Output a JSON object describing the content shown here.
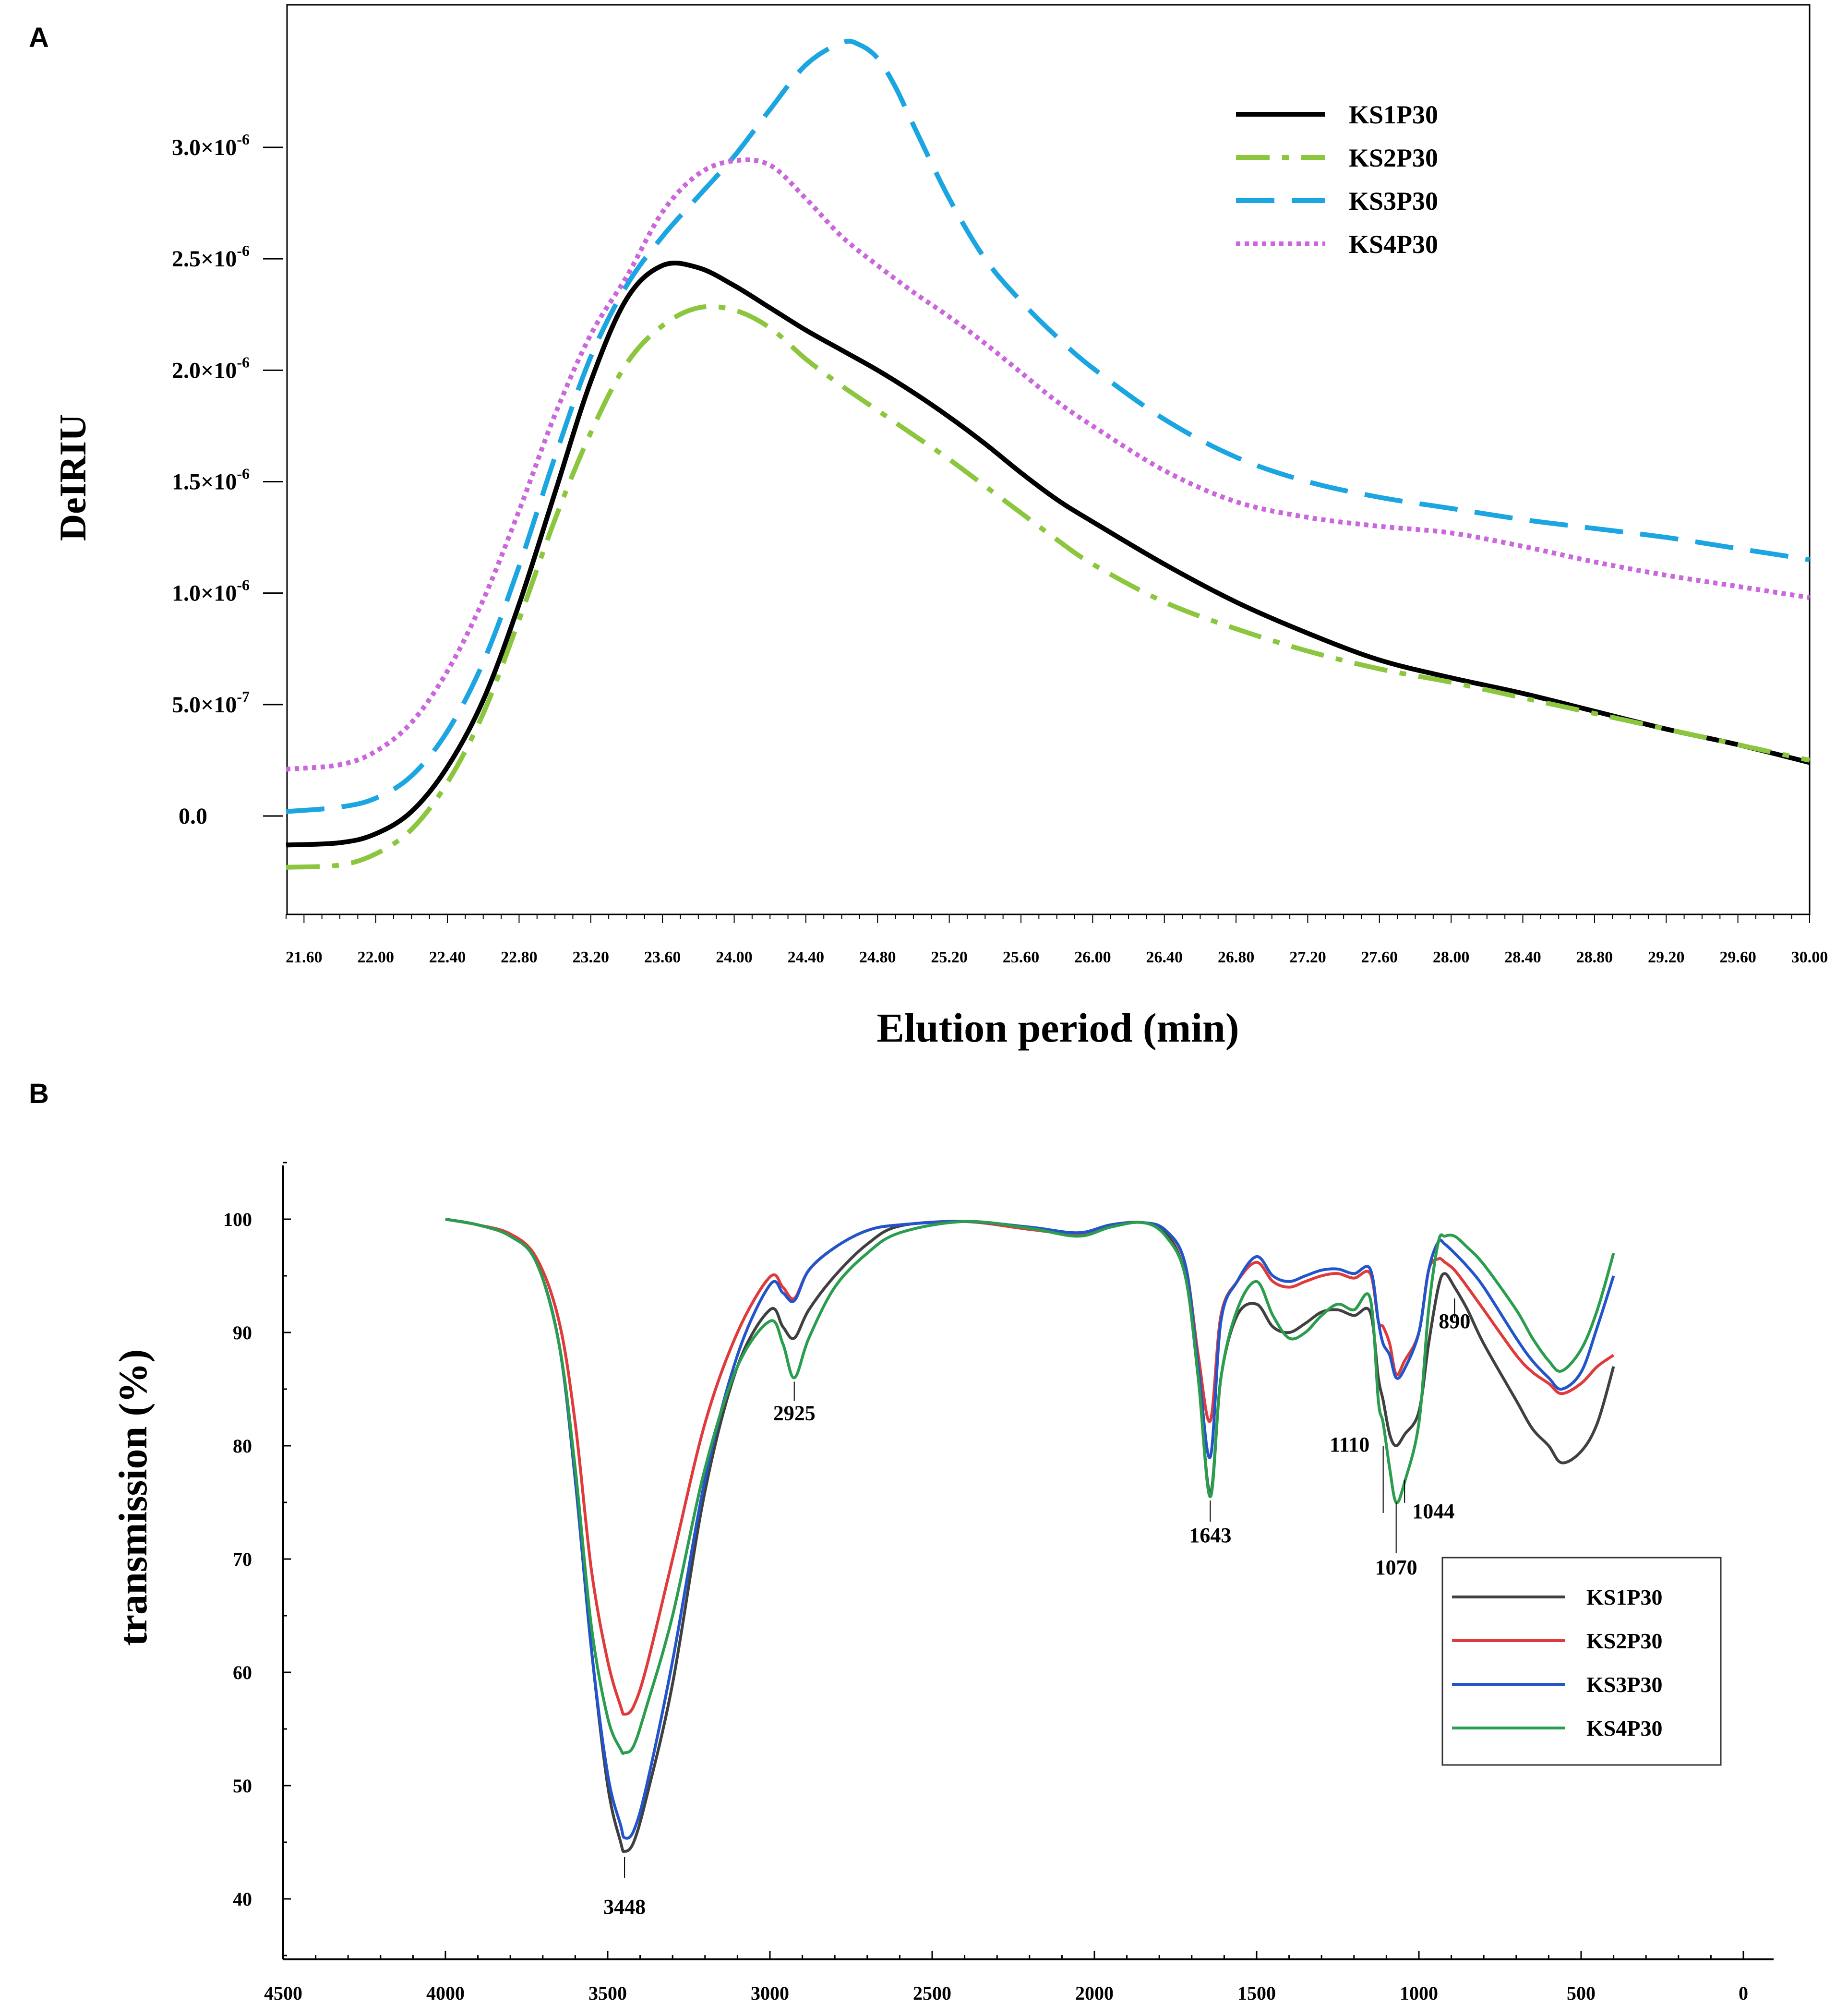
{
  "chart_data": [
    {
      "panel": "A",
      "type": "line",
      "title": "",
      "xlabel": "Elution period (min)",
      "ylabel": "DeIRIU",
      "xlim": [
        21.5,
        30.0
      ],
      "ylim": [
        -4e-07,
        3.5e-06
      ],
      "x_tick_labels": [
        "21.60",
        "22.00",
        "22.40",
        "22.80",
        "23.20",
        "23.60",
        "24.00",
        "24.40",
        "24.80",
        "25.20",
        "25.60",
        "26.00",
        "26.40",
        "26.80",
        "27.20",
        "27.60",
        "28.00",
        "28.40",
        "28.80",
        "29.20",
        "29.60",
        "30.00"
      ],
      "y_ticks": [
        {
          "value": 0,
          "label": "0.0"
        },
        {
          "value": 5e-07,
          "label": "5.0×10",
          "exp": "-7"
        },
        {
          "value": 1e-06,
          "label": "1.0×10",
          "exp": "-6"
        },
        {
          "value": 1.5e-06,
          "label": "1.5×10",
          "exp": "-6"
        },
        {
          "value": 2e-06,
          "label": "2.0×10",
          "exp": "-6"
        },
        {
          "value": 2.5e-06,
          "label": "2.5×10",
          "exp": "-6"
        },
        {
          "value": 3e-06,
          "label": "3.0×10",
          "exp": "-6"
        }
      ],
      "legend_position": "top-right",
      "series": [
        {
          "name": "KS1P30",
          "color": "#000000",
          "dash": "solid",
          "x": [
            21.5,
            21.8,
            22.0,
            22.2,
            22.4,
            22.6,
            22.8,
            23.0,
            23.2,
            23.4,
            23.6,
            23.8,
            24.0,
            24.2,
            24.4,
            24.6,
            24.8,
            25.0,
            25.2,
            25.4,
            25.6,
            25.8,
            26.0,
            26.4,
            26.8,
            27.2,
            27.6,
            28.0,
            28.4,
            28.8,
            29.2,
            29.6,
            30.0
          ],
          "y": [
            -1.3e-07,
            -1.2e-07,
            -8e-08,
            2e-08,
            2.2e-07,
            5.2e-07,
            9.5e-07,
            1.45e-06,
            1.95e-06,
            2.32e-06,
            2.47e-06,
            2.46e-06,
            2.38e-06,
            2.28e-06,
            2.18e-06,
            2.09e-06,
            2e-06,
            1.9e-06,
            1.79e-06,
            1.67e-06,
            1.54e-06,
            1.42e-06,
            1.32e-06,
            1.13e-06,
            9.6e-07,
            8.2e-07,
            7e-07,
            6.2e-07,
            5.5e-07,
            4.7e-07,
            3.9e-07,
            3.2e-07,
            2.4e-07
          ]
        },
        {
          "name": "KS2P30",
          "color": "#8cc63f",
          "dash": "dashdot",
          "x": [
            21.5,
            21.8,
            22.0,
            22.2,
            22.4,
            22.6,
            22.8,
            23.0,
            23.2,
            23.4,
            23.6,
            23.8,
            24.0,
            24.2,
            24.4,
            24.6,
            24.8,
            25.0,
            25.2,
            25.4,
            25.6,
            25.8,
            26.0,
            26.4,
            26.8,
            27.2,
            27.6,
            28.0,
            28.4,
            28.8,
            29.2,
            29.6,
            30.0
          ],
          "y": [
            -2.3e-07,
            -2.2e-07,
            -1.7e-07,
            -6e-08,
            1.5e-07,
            4.6e-07,
            8.8e-07,
            1.33e-06,
            1.72e-06,
            2.03e-06,
            2.2e-06,
            2.28e-06,
            2.27e-06,
            2.19e-06,
            2.05e-06,
            1.93e-06,
            1.82e-06,
            1.71e-06,
            1.6e-06,
            1.48e-06,
            1.36e-06,
            1.24e-06,
            1.13e-06,
            9.6e-07,
            8.4e-07,
            7.4e-07,
            6.6e-07,
            6e-07,
            5.3e-07,
            4.6e-07,
            3.9e-07,
            3.2e-07,
            2.5e-07
          ]
        },
        {
          "name": "KS3P30",
          "color": "#1ba5e1",
          "dash": "dashed",
          "x": [
            21.5,
            21.8,
            22.0,
            22.2,
            22.4,
            22.6,
            22.8,
            23.0,
            23.2,
            23.4,
            23.6,
            23.8,
            24.0,
            24.2,
            24.4,
            24.6,
            24.7,
            24.8,
            24.9,
            25.0,
            25.2,
            25.4,
            25.6,
            25.8,
            26.0,
            26.4,
            26.8,
            27.2,
            27.6,
            28.0,
            28.4,
            28.8,
            29.2,
            29.6,
            30.0
          ],
          "y": [
            2e-08,
            4e-08,
            8e-08,
            1.8e-07,
            3.8e-07,
            6.9e-07,
            1.12e-06,
            1.61e-06,
            2.06e-06,
            2.38e-06,
            2.6e-06,
            2.78e-06,
            2.96e-06,
            3.17e-06,
            3.37e-06,
            3.47e-06,
            3.46e-06,
            3.4e-06,
            3.27e-06,
            3.1e-06,
            2.77e-06,
            2.5e-06,
            2.31e-06,
            2.15e-06,
            2.01e-06,
            1.78e-06,
            1.61e-06,
            1.5e-06,
            1.43e-06,
            1.38e-06,
            1.33e-06,
            1.29e-06,
            1.25e-06,
            1.2e-06,
            1.15e-06
          ]
        },
        {
          "name": "KS4P30",
          "color": "#cc66dd",
          "dash": "dotted",
          "x": [
            21.5,
            21.8,
            22.0,
            22.2,
            22.4,
            22.6,
            22.8,
            23.0,
            23.2,
            23.4,
            23.6,
            23.8,
            24.0,
            24.2,
            24.4,
            24.6,
            24.8,
            25.0,
            25.2,
            25.4,
            25.6,
            25.8,
            26.0,
            26.4,
            26.8,
            27.2,
            27.6,
            28.0,
            28.4,
            28.8,
            29.2,
            29.6,
            30.0
          ],
          "y": [
            2.1e-07,
            2.3e-07,
            2.9e-07,
            4.2e-07,
            6.5e-07,
            9.7e-07,
            1.37e-06,
            1.8e-06,
            2.16e-06,
            2.42e-06,
            2.71e-06,
            2.88e-06,
            2.94e-06,
            2.92e-06,
            2.77e-06,
            2.6e-06,
            2.47e-06,
            2.35e-06,
            2.24e-06,
            2.12e-06,
            1.99e-06,
            1.86e-06,
            1.75e-06,
            1.55e-06,
            1.41e-06,
            1.34e-06,
            1.3e-06,
            1.27e-06,
            1.21e-06,
            1.14e-06,
            1.08e-06,
            1.03e-06,
            9.8e-07
          ]
        }
      ]
    },
    {
      "panel": "B",
      "type": "line",
      "title": "",
      "xlabel": "",
      "ylabel": "transmission (%)",
      "xlim": [
        4500,
        0
      ],
      "ylim": [
        35,
        105
      ],
      "x_tick_labels": [
        "4500",
        "4000",
        "3500",
        "3000",
        "2500",
        "2000",
        "1500",
        "1000",
        "500",
        "0"
      ],
      "y_tick_labels": [
        "40",
        "50",
        "60",
        "70",
        "80",
        "90",
        "100"
      ],
      "legend_position": "bottom-right",
      "annotations": [
        {
          "label": "3448",
          "x": 3448,
          "y": 44.2
        },
        {
          "label": "2925",
          "x": 2925,
          "y": 86
        },
        {
          "label": "1643",
          "x": 1643,
          "y": 75.5
        },
        {
          "label": "1110",
          "x": 1110,
          "y": 80
        },
        {
          "label": "1070",
          "x": 1070,
          "y": 75
        },
        {
          "label": "1044",
          "x": 1044,
          "y": 77
        },
        {
          "label": "890",
          "x": 890,
          "y": 93
        }
      ],
      "series": [
        {
          "name": "KS1P30",
          "color": "#404040",
          "x": [
            4000,
            3900,
            3800,
            3720,
            3650,
            3600,
            3550,
            3500,
            3460,
            3448,
            3420,
            3380,
            3300,
            3200,
            3100,
            3000,
            2960,
            2925,
            2880,
            2800,
            2700,
            2600,
            2400,
            2200,
            2050,
            1950,
            1850,
            1780,
            1720,
            1680,
            1643,
            1610,
            1560,
            1500,
            1450,
            1400,
            1350,
            1300,
            1250,
            1200,
            1150,
            1125,
            1110,
            1090,
            1070,
            1044,
            1000,
            970,
            940,
            920,
            890,
            850,
            800,
            700,
            650,
            600,
            560,
            500,
            450,
            400
          ],
          "y": [
            100,
            99.5,
            98.5,
            96.2,
            89,
            77,
            62,
            50,
            45,
            44.2,
            45,
            49,
            59,
            76,
            87,
            92,
            90.5,
            89.5,
            92,
            95,
            97.8,
            99.4,
            99.8,
            99.3,
            98.8,
            99.5,
            99.7,
            98.8,
            95,
            86,
            75.8,
            86,
            91.5,
            92.5,
            90.5,
            90,
            90.8,
            91.8,
            92,
            91.5,
            91.8,
            86,
            84,
            81,
            80,
            81,
            83,
            89,
            94,
            95.2,
            94,
            92,
            89,
            84,
            81.5,
            80,
            78.5,
            79.5,
            82,
            87
          ]
        },
        {
          "name": "KS2P30",
          "color": "#e03a3a",
          "x": [
            4000,
            3900,
            3800,
            3720,
            3650,
            3600,
            3550,
            3500,
            3460,
            3448,
            3420,
            3380,
            3300,
            3200,
            3100,
            3000,
            2960,
            2925,
            2880,
            2800,
            2700,
            2600,
            2400,
            2200,
            2050,
            1950,
            1850,
            1780,
            1720,
            1680,
            1643,
            1610,
            1560,
            1500,
            1450,
            1400,
            1350,
            1300,
            1250,
            1200,
            1150,
            1125,
            1110,
            1090,
            1070,
            1044,
            1000,
            970,
            940,
            920,
            890,
            850,
            800,
            700,
            650,
            600,
            560,
            500,
            450,
            400
          ],
          "y": [
            100,
            99.5,
            98.7,
            96.6,
            91,
            82,
            69,
            61,
            57,
            56.3,
            57,
            60.5,
            70,
            82,
            90,
            94.9,
            94,
            93,
            95.5,
            97.5,
            99,
            99.5,
            99.8,
            99.1,
            98.7,
            99.5,
            99.7,
            99,
            96,
            88,
            82.2,
            91.5,
            94.5,
            96.2,
            94.5,
            94,
            94.5,
            95,
            95.2,
            94.8,
            95.2,
            91,
            90.5,
            89,
            86.3,
            87.5,
            90,
            95.5,
            96.5,
            96.2,
            95.5,
            94,
            92,
            88,
            86.5,
            85.5,
            84.6,
            85.5,
            87,
            88
          ]
        },
        {
          "name": "KS3P30",
          "color": "#2255cc",
          "x": [
            4000,
            3900,
            3800,
            3720,
            3650,
            3600,
            3550,
            3500,
            3460,
            3448,
            3420,
            3380,
            3300,
            3200,
            3100,
            3000,
            2960,
            2925,
            2880,
            2800,
            2700,
            2600,
            2400,
            2200,
            2050,
            1950,
            1850,
            1780,
            1720,
            1680,
            1643,
            1610,
            1560,
            1500,
            1450,
            1400,
            1350,
            1300,
            1250,
            1200,
            1150,
            1125,
            1110,
            1090,
            1070,
            1044,
            1000,
            970,
            940,
            920,
            890,
            850,
            800,
            700,
            650,
            600,
            560,
            500,
            450,
            400
          ],
          "y": [
            100,
            99.5,
            98.5,
            96.2,
            89,
            77,
            62,
            51,
            46.5,
            45.4,
            46,
            50,
            61,
            77,
            88,
            94.2,
            93.5,
            92.8,
            95.5,
            97.5,
            99,
            99.5,
            99.8,
            99.3,
            98.8,
            99.5,
            99.7,
            99,
            96,
            87,
            79,
            91,
            94.5,
            96.7,
            95,
            94.5,
            95,
            95.5,
            95.6,
            95.2,
            95.6,
            91,
            89,
            88,
            86,
            86.8,
            90,
            95.5,
            98,
            97.8,
            97,
            95.8,
            94,
            89.5,
            87.5,
            86,
            85,
            86.5,
            90.5,
            95
          ]
        },
        {
          "name": "KS4P30",
          "color": "#2a9d4e",
          "x": [
            4000,
            3900,
            3800,
            3720,
            3650,
            3600,
            3550,
            3500,
            3460,
            3448,
            3420,
            3380,
            3300,
            3200,
            3100,
            3000,
            2960,
            2925,
            2880,
            2800,
            2700,
            2600,
            2400,
            2200,
            2050,
            1950,
            1850,
            1780,
            1720,
            1680,
            1643,
            1610,
            1560,
            1500,
            1450,
            1400,
            1350,
            1300,
            1250,
            1200,
            1150,
            1125,
            1110,
            1090,
            1070,
            1044,
            1000,
            970,
            940,
            920,
            890,
            850,
            800,
            700,
            650,
            600,
            560,
            500,
            450,
            400
          ],
          "y": [
            100,
            99.5,
            98.5,
            96.2,
            89,
            78,
            64,
            56,
            53.2,
            52.9,
            53.5,
            57,
            65,
            78,
            87,
            91,
            89,
            86,
            89.5,
            94,
            97,
            98.8,
            99.8,
            99.2,
            98.5,
            99.3,
            99.7,
            98.5,
            95,
            86,
            75.5,
            86,
            92,
            94.5,
            91.5,
            89.5,
            90,
            91.5,
            92.5,
            92,
            93,
            84,
            82,
            78,
            75,
            76.8,
            82,
            92,
            98,
            98.5,
            98.5,
            97.5,
            96,
            92,
            89.5,
            87.5,
            86.6,
            88.5,
            92,
            97
          ]
        }
      ]
    }
  ],
  "panel_a_letter": "A",
  "panel_b_letter": "B",
  "panel_a_ytick_exp_labels": [
    "-7",
    "-6",
    "-6",
    "-6",
    "-6",
    "-6"
  ]
}
